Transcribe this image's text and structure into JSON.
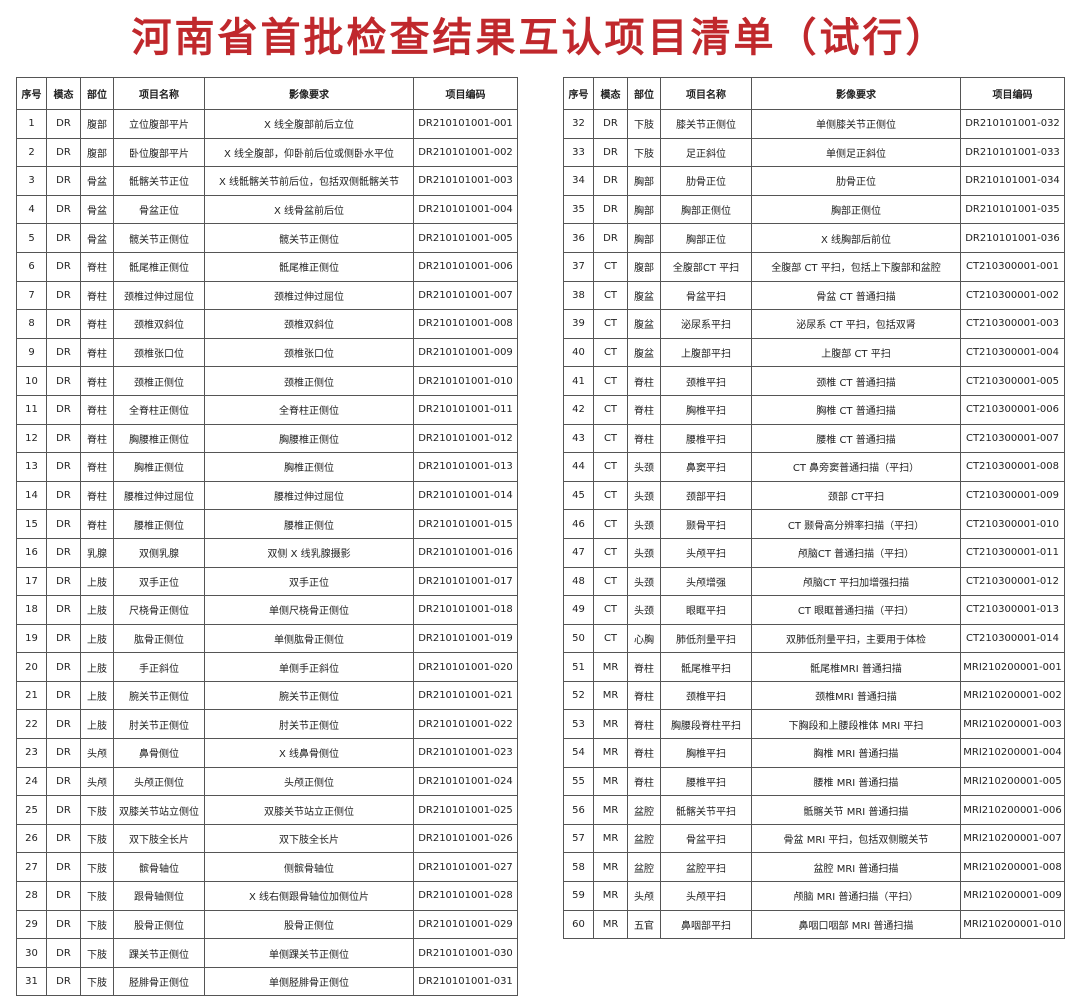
{
  "title": "河南省首批检查结果互认项目清单（试行）",
  "colors": {
    "title": "#c0282c",
    "border": "#555555"
  },
  "headers": [
    "序号",
    "模态",
    "部位",
    "项目名称",
    "影像要求",
    "项目编码"
  ],
  "left_rows": [
    [
      "1",
      "DR",
      "腹部",
      "立位腹部平片",
      "X 线全腹部前后立位",
      "DR210101001-001"
    ],
    [
      "2",
      "DR",
      "腹部",
      "卧位腹部平片",
      "X 线全腹部，仰卧前后位或侧卧水平位",
      "DR210101001-002"
    ],
    [
      "3",
      "DR",
      "骨盆",
      "骶髂关节正位",
      "X 线骶髂关节前后位，包括双侧骶髂关节",
      "DR210101001-003"
    ],
    [
      "4",
      "DR",
      "骨盆",
      "骨盆正位",
      "X 线骨盆前后位",
      "DR210101001-004"
    ],
    [
      "5",
      "DR",
      "骨盆",
      "髋关节正侧位",
      "髋关节正侧位",
      "DR210101001-005"
    ],
    [
      "6",
      "DR",
      "脊柱",
      "骶尾椎正侧位",
      "骶尾椎正侧位",
      "DR210101001-006"
    ],
    [
      "7",
      "DR",
      "脊柱",
      "颈椎过伸过屈位",
      "颈椎过伸过屈位",
      "DR210101001-007"
    ],
    [
      "8",
      "DR",
      "脊柱",
      "颈椎双斜位",
      "颈椎双斜位",
      "DR210101001-008"
    ],
    [
      "9",
      "DR",
      "脊柱",
      "颈椎张口位",
      "颈椎张口位",
      "DR210101001-009"
    ],
    [
      "10",
      "DR",
      "脊柱",
      "颈椎正侧位",
      "颈椎正侧位",
      "DR210101001-010"
    ],
    [
      "11",
      "DR",
      "脊柱",
      "全脊柱正侧位",
      "全脊柱正侧位",
      "DR210101001-011"
    ],
    [
      "12",
      "DR",
      "脊柱",
      "胸腰椎正侧位",
      "胸腰椎正侧位",
      "DR210101001-012"
    ],
    [
      "13",
      "DR",
      "脊柱",
      "胸椎正侧位",
      "胸椎正侧位",
      "DR210101001-013"
    ],
    [
      "14",
      "DR",
      "脊柱",
      "腰椎过伸过屈位",
      "腰椎过伸过屈位",
      "DR210101001-014"
    ],
    [
      "15",
      "DR",
      "脊柱",
      "腰椎正侧位",
      "腰椎正侧位",
      "DR210101001-015"
    ],
    [
      "16",
      "DR",
      "乳腺",
      "双侧乳腺",
      "双侧 X 线乳腺摄影",
      "DR210101001-016"
    ],
    [
      "17",
      "DR",
      "上肢",
      "双手正位",
      "双手正位",
      "DR210101001-017"
    ],
    [
      "18",
      "DR",
      "上肢",
      "尺桡骨正侧位",
      "单侧尺桡骨正侧位",
      "DR210101001-018"
    ],
    [
      "19",
      "DR",
      "上肢",
      "肱骨正侧位",
      "单侧肱骨正侧位",
      "DR210101001-019"
    ],
    [
      "20",
      "DR",
      "上肢",
      "手正斜位",
      "单侧手正斜位",
      "DR210101001-020"
    ],
    [
      "21",
      "DR",
      "上肢",
      "腕关节正侧位",
      "腕关节正侧位",
      "DR210101001-021"
    ],
    [
      "22",
      "DR",
      "上肢",
      "肘关节正侧位",
      "肘关节正侧位",
      "DR210101001-022"
    ],
    [
      "23",
      "DR",
      "头颅",
      "鼻骨侧位",
      "X 线鼻骨侧位",
      "DR210101001-023"
    ],
    [
      "24",
      "DR",
      "头颅",
      "头颅正侧位",
      "头颅正侧位",
      "DR210101001-024"
    ],
    [
      "25",
      "DR",
      "下肢",
      "双膝关节站立侧位",
      "双膝关节站立正侧位",
      "DR210101001-025"
    ],
    [
      "26",
      "DR",
      "下肢",
      "双下肢全长片",
      "双下肢全长片",
      "DR210101001-026"
    ],
    [
      "27",
      "DR",
      "下肢",
      "髌骨轴位",
      "侧髌骨轴位",
      "DR210101001-027"
    ],
    [
      "28",
      "DR",
      "下肢",
      "跟骨轴侧位",
      "X 线右侧跟骨轴位加侧位片",
      "DR210101001-028"
    ],
    [
      "29",
      "DR",
      "下肢",
      "股骨正侧位",
      "股骨正侧位",
      "DR210101001-029"
    ],
    [
      "30",
      "DR",
      "下肢",
      "踝关节正侧位",
      "单侧踝关节正侧位",
      "DR210101001-030"
    ],
    [
      "31",
      "DR",
      "下肢",
      "胫腓骨正侧位",
      "单侧胫腓骨正侧位",
      "DR210101001-031"
    ]
  ],
  "right_rows": [
    [
      "32",
      "DR",
      "下肢",
      "膝关节正侧位",
      "单侧膝关节正侧位",
      "DR210101001-032"
    ],
    [
      "33",
      "DR",
      "下肢",
      "足正斜位",
      "单侧足正斜位",
      "DR210101001-033"
    ],
    [
      "34",
      "DR",
      "胸部",
      "肋骨正位",
      "肋骨正位",
      "DR210101001-034"
    ],
    [
      "35",
      "DR",
      "胸部",
      "胸部正侧位",
      "胸部正侧位",
      "DR210101001-035"
    ],
    [
      "36",
      "DR",
      "胸部",
      "胸部正位",
      "X 线胸部后前位",
      "DR210101001-036"
    ],
    [
      "37",
      "CT",
      "腹部",
      "全腹部CT 平扫",
      "全腹部 CT 平扫，包括上下腹部和盆腔",
      "CT210300001-001"
    ],
    [
      "38",
      "CT",
      "腹盆",
      "骨盆平扫",
      "骨盆 CT 普通扫描",
      "CT210300001-002"
    ],
    [
      "39",
      "CT",
      "腹盆",
      "泌尿系平扫",
      "泌尿系 CT 平扫，包括双肾",
      "CT210300001-003"
    ],
    [
      "40",
      "CT",
      "腹盆",
      "上腹部平扫",
      "上腹部 CT 平扫",
      "CT210300001-004"
    ],
    [
      "41",
      "CT",
      "脊柱",
      "颈椎平扫",
      "颈椎 CT 普通扫描",
      "CT210300001-005"
    ],
    [
      "42",
      "CT",
      "脊柱",
      "胸椎平扫",
      "胸椎 CT 普通扫描",
      "CT210300001-006"
    ],
    [
      "43",
      "CT",
      "脊柱",
      "腰椎平扫",
      "腰椎 CT 普通扫描",
      "CT210300001-007"
    ],
    [
      "44",
      "CT",
      "头颈",
      "鼻窦平扫",
      "CT 鼻旁窦普通扫描（平扫）",
      "CT210300001-008"
    ],
    [
      "45",
      "CT",
      "头颈",
      "颈部平扫",
      "颈部 CT平扫",
      "CT210300001-009"
    ],
    [
      "46",
      "CT",
      "头颈",
      "颞骨平扫",
      "CT 颞骨高分辨率扫描（平扫）",
      "CT210300001-010"
    ],
    [
      "47",
      "CT",
      "头颈",
      "头颅平扫",
      "颅脑CT 普通扫描（平扫）",
      "CT210300001-011"
    ],
    [
      "48",
      "CT",
      "头颈",
      "头颅增强",
      "颅脑CT 平扫加增强扫描",
      "CT210300001-012"
    ],
    [
      "49",
      "CT",
      "头颈",
      "眼眶平扫",
      "CT 眼眶普通扫描（平扫）",
      "CT210300001-013"
    ],
    [
      "50",
      "CT",
      "心胸",
      "肺低剂量平扫",
      "双肺低剂量平扫，主要用于体检",
      "CT210300001-014"
    ],
    [
      "51",
      "MR",
      "脊柱",
      "骶尾椎平扫",
      "骶尾椎MRI 普通扫描",
      "MRI210200001-001"
    ],
    [
      "52",
      "MR",
      "脊柱",
      "颈椎平扫",
      "颈椎MRI 普通扫描",
      "MRI210200001-002"
    ],
    [
      "53",
      "MR",
      "脊柱",
      "胸腰段脊柱平扫",
      "下胸段和上腰段椎体 MRI 平扫",
      "MRI210200001-003"
    ],
    [
      "54",
      "MR",
      "脊柱",
      "胸椎平扫",
      "胸椎 MRI 普通扫描",
      "MRI210200001-004"
    ],
    [
      "55",
      "MR",
      "脊柱",
      "腰椎平扫",
      "腰椎 MRI 普通扫描",
      "MRI210200001-005"
    ],
    [
      "56",
      "MR",
      "盆腔",
      "骶髂关节平扫",
      "骶髂关节 MRI 普通扫描",
      "MRI210200001-006"
    ],
    [
      "57",
      "MR",
      "盆腔",
      "骨盆平扫",
      "骨盆 MRI 平扫，包括双侧髋关节",
      "MRI210200001-007"
    ],
    [
      "58",
      "MR",
      "盆腔",
      "盆腔平扫",
      "盆腔 MRI 普通扫描",
      "MRI210200001-008"
    ],
    [
      "59",
      "MR",
      "头颅",
      "头颅平扫",
      "颅脑 MRI 普通扫描（平扫）",
      "MRI210200001-009"
    ],
    [
      "60",
      "MR",
      "五官",
      "鼻咽部平扫",
      "鼻咽口咽部 MRI 普通扫描",
      "MRI210200001-010"
    ]
  ]
}
